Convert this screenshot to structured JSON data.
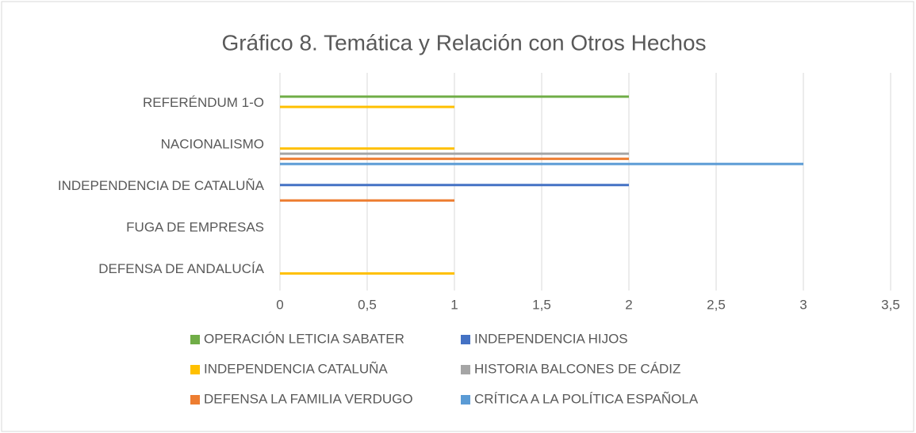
{
  "chart_data": {
    "type": "bar",
    "orientation": "horizontal",
    "title": "Gráfico 8. Temática y Relación con Otros Hechos",
    "categories": [
      "REFERÉNDUM 1-O",
      "NACIONALISMO",
      "INDEPENDENCIA DE CATALUÑA",
      "FUGA DE EMPRESAS",
      "DEFENSA DE ANDALUCÍA"
    ],
    "series": [
      {
        "name": "OPERACIÓN LETICIA SABATER",
        "color": "#70ad47",
        "values": [
          2,
          0,
          0,
          0,
          0
        ]
      },
      {
        "name": "INDEPENDENCIA HIJOS",
        "color": "#4472c4",
        "values": [
          0,
          0,
          2,
          0,
          0
        ]
      },
      {
        "name": "INDEPENDENCIA CATALUÑA",
        "color": "#ffc000",
        "values": [
          1,
          1,
          0,
          0,
          1
        ]
      },
      {
        "name": "HISTORIA BALCONES DE CÁDIZ",
        "color": "#a5a5a5",
        "values": [
          0,
          2,
          0,
          0,
          0
        ]
      },
      {
        "name": "DEFENSA LA FAMILIA VERDUGO",
        "color": "#ed7d31",
        "values": [
          0,
          2,
          1,
          0,
          0
        ]
      },
      {
        "name": "CRÍTICA A LA POLÍTICA ESPAÑOLA",
        "color": "#5b9bd5",
        "values": [
          0,
          3,
          0,
          0,
          0
        ]
      }
    ],
    "xlim": [
      0,
      3.5
    ],
    "xticks": [
      0,
      {
        "value": 0.5,
        "label": "0,5"
      },
      1,
      {
        "value": 1.5,
        "label": "1,5"
      },
      2,
      {
        "value": 2.5,
        "label": "2,5"
      },
      3,
      {
        "value": 3.5,
        "label": "3,5"
      }
    ],
    "grid": true,
    "legend": "bottom"
  }
}
